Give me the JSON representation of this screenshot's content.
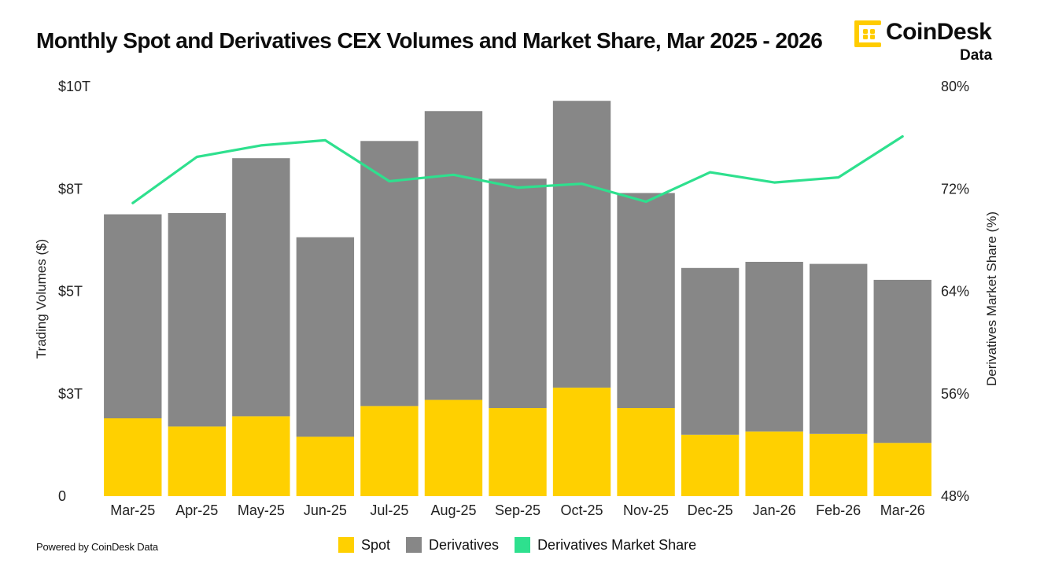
{
  "title": "Monthly Spot and Derivatives CEX Volumes and Market Share, Mar 2025 - 2026",
  "logo": {
    "name": "CoinDesk",
    "sub": "Data",
    "icon": "coindesk-logo-icon",
    "color": "#FFCC00"
  },
  "footer": "Powered by CoinDesk Data",
  "legend": [
    {
      "label": "Spot",
      "color": "#FFD000"
    },
    {
      "label": "Derivatives",
      "color": "#878787"
    },
    {
      "label": "Derivatives Market Share",
      "color": "#2EE08E"
    }
  ],
  "chart_data": {
    "type": "bar",
    "stacked": true,
    "categories": [
      "Mar-25",
      "Apr-25",
      "May-25",
      "Jun-25",
      "Jul-25",
      "Aug-25",
      "Sep-25",
      "Oct-25",
      "Nov-25",
      "Dec-25",
      "Jan-26",
      "Feb-26",
      "Mar-26"
    ],
    "series": [
      {
        "name": "Spot",
        "axis": "left",
        "color": "#FFD000",
        "values": [
          1.9,
          1.7,
          1.95,
          1.45,
          2.2,
          2.35,
          2.15,
          2.65,
          2.15,
          1.5,
          1.58,
          1.52,
          1.3
        ]
      },
      {
        "name": "Derivatives",
        "axis": "left",
        "color": "#878787",
        "values": [
          4.98,
          5.21,
          6.3,
          4.87,
          6.47,
          7.05,
          5.6,
          7.0,
          5.25,
          4.07,
          4.14,
          4.15,
          3.98
        ]
      },
      {
        "name": "Derivatives Market Share",
        "type": "line",
        "axis": "right",
        "color": "#2EE08E",
        "values": [
          70.9,
          74.5,
          75.4,
          75.8,
          72.6,
          73.1,
          72.1,
          72.4,
          71.0,
          73.3,
          72.5,
          72.9,
          76.1
        ]
      }
    ],
    "ylabel": "Trading Volumes ($)",
    "y2label": "Derivatives Market Share (%)",
    "ylim": [
      0,
      10
    ],
    "yticks": [
      0,
      2.5,
      5,
      7.5,
      10
    ],
    "yticklabels": [
      "0",
      "$3T",
      "$5T",
      "$8T",
      "$10T"
    ],
    "y2lim": [
      48,
      80
    ],
    "y2ticks": [
      48,
      56,
      64,
      72,
      80
    ],
    "y2ticklabels": [
      "48%",
      "56%",
      "64%",
      "72%",
      "80%"
    ],
    "grid": false,
    "legend_position": "bottom"
  }
}
